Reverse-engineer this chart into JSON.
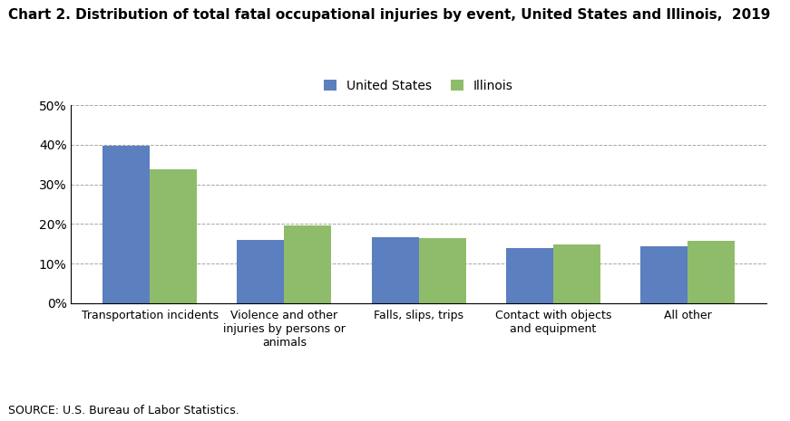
{
  "title": "Chart 2. Distribution of total fatal occupational injuries by event, United States and Illinois,  2019",
  "categories": [
    "Transportation incidents",
    "Violence and other\ninjuries by persons or\nanimals",
    "Falls, slips, trips",
    "Contact with objects\nand equipment",
    "All other"
  ],
  "us_values": [
    0.397,
    0.16,
    0.167,
    0.138,
    0.143
  ],
  "il_values": [
    0.337,
    0.197,
    0.164,
    0.148,
    0.158
  ],
  "us_color": "#5B7FBF",
  "il_color": "#8FBC6A",
  "legend_labels": [
    "United States",
    "Illinois"
  ],
  "ylim": [
    0,
    0.5
  ],
  "yticks": [
    0.0,
    0.1,
    0.2,
    0.3,
    0.4,
    0.5
  ],
  "ytick_labels": [
    "0%",
    "10%",
    "20%",
    "30%",
    "40%",
    "50%"
  ],
  "source_text": "SOURCE: U.S. Bureau of Labor Statistics.",
  "bar_width": 0.35,
  "title_fontsize": 11,
  "legend_fontsize": 10,
  "tick_fontsize": 10,
  "xtick_fontsize": 9
}
